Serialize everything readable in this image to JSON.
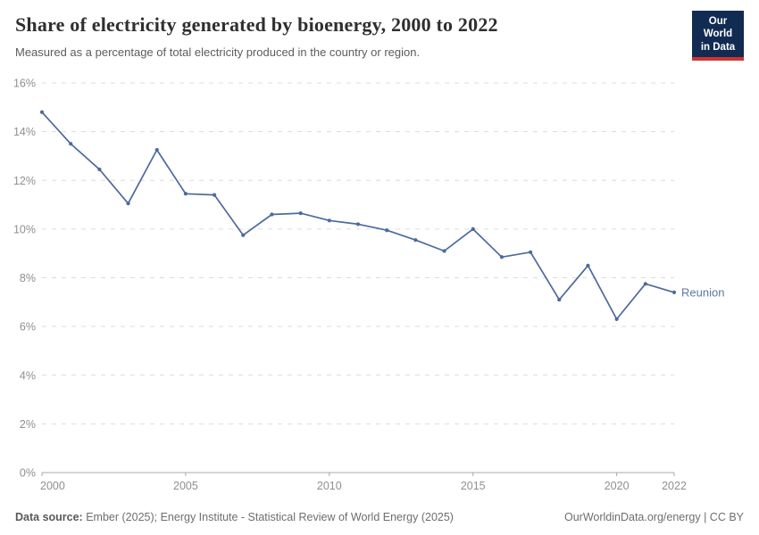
{
  "header": {
    "title": "Share of electricity generated by bioenergy, 2000 to 2022",
    "subtitle": "Measured as a percentage of total electricity produced in the country or region.",
    "logo_line1": "Our World",
    "logo_line2": "in Data"
  },
  "chart_data": {
    "type": "line",
    "title": "Share of electricity generated by bioenergy, 2000 to 2022",
    "subtitle": "Measured as a percentage of total electricity produced in the country or region.",
    "xlabel": "",
    "ylabel": "",
    "xlim": [
      2000,
      2022
    ],
    "ylim": [
      0,
      16
    ],
    "grid": "horizontal-dashed",
    "legend_position": "end-of-line-label",
    "xticks": [
      2000,
      2005,
      2010,
      2015,
      2020,
      2022
    ],
    "yticks": [
      0,
      2,
      4,
      6,
      8,
      10,
      12,
      14,
      16
    ],
    "ytick_suffix": "%",
    "x": [
      2000,
      2001,
      2002,
      2003,
      2004,
      2005,
      2006,
      2007,
      2008,
      2009,
      2010,
      2011,
      2012,
      2013,
      2014,
      2015,
      2016,
      2017,
      2018,
      2019,
      2020,
      2021,
      2022
    ],
    "series": [
      {
        "name": "Reunion",
        "values": [
          14.8,
          13.5,
          12.45,
          11.05,
          13.25,
          11.45,
          11.4,
          9.75,
          10.6,
          10.65,
          10.35,
          10.2,
          9.95,
          9.55,
          9.1,
          10.0,
          8.85,
          9.05,
          7.1,
          8.5,
          6.3,
          7.75,
          7.4
        ]
      }
    ],
    "colors": {
      "line": "#4c6a9c",
      "end_label": "#5e79a1",
      "gridline": "#dcdcdc",
      "axis": "#a8a8a8",
      "tick_text": "#8f8f8f"
    }
  },
  "footer": {
    "datasource_label": "Data source:",
    "datasource_text": "Ember (2025); Energy Institute - Statistical Review of World Energy (2025)",
    "credit": "OurWorldinData.org/energy | CC BY"
  }
}
